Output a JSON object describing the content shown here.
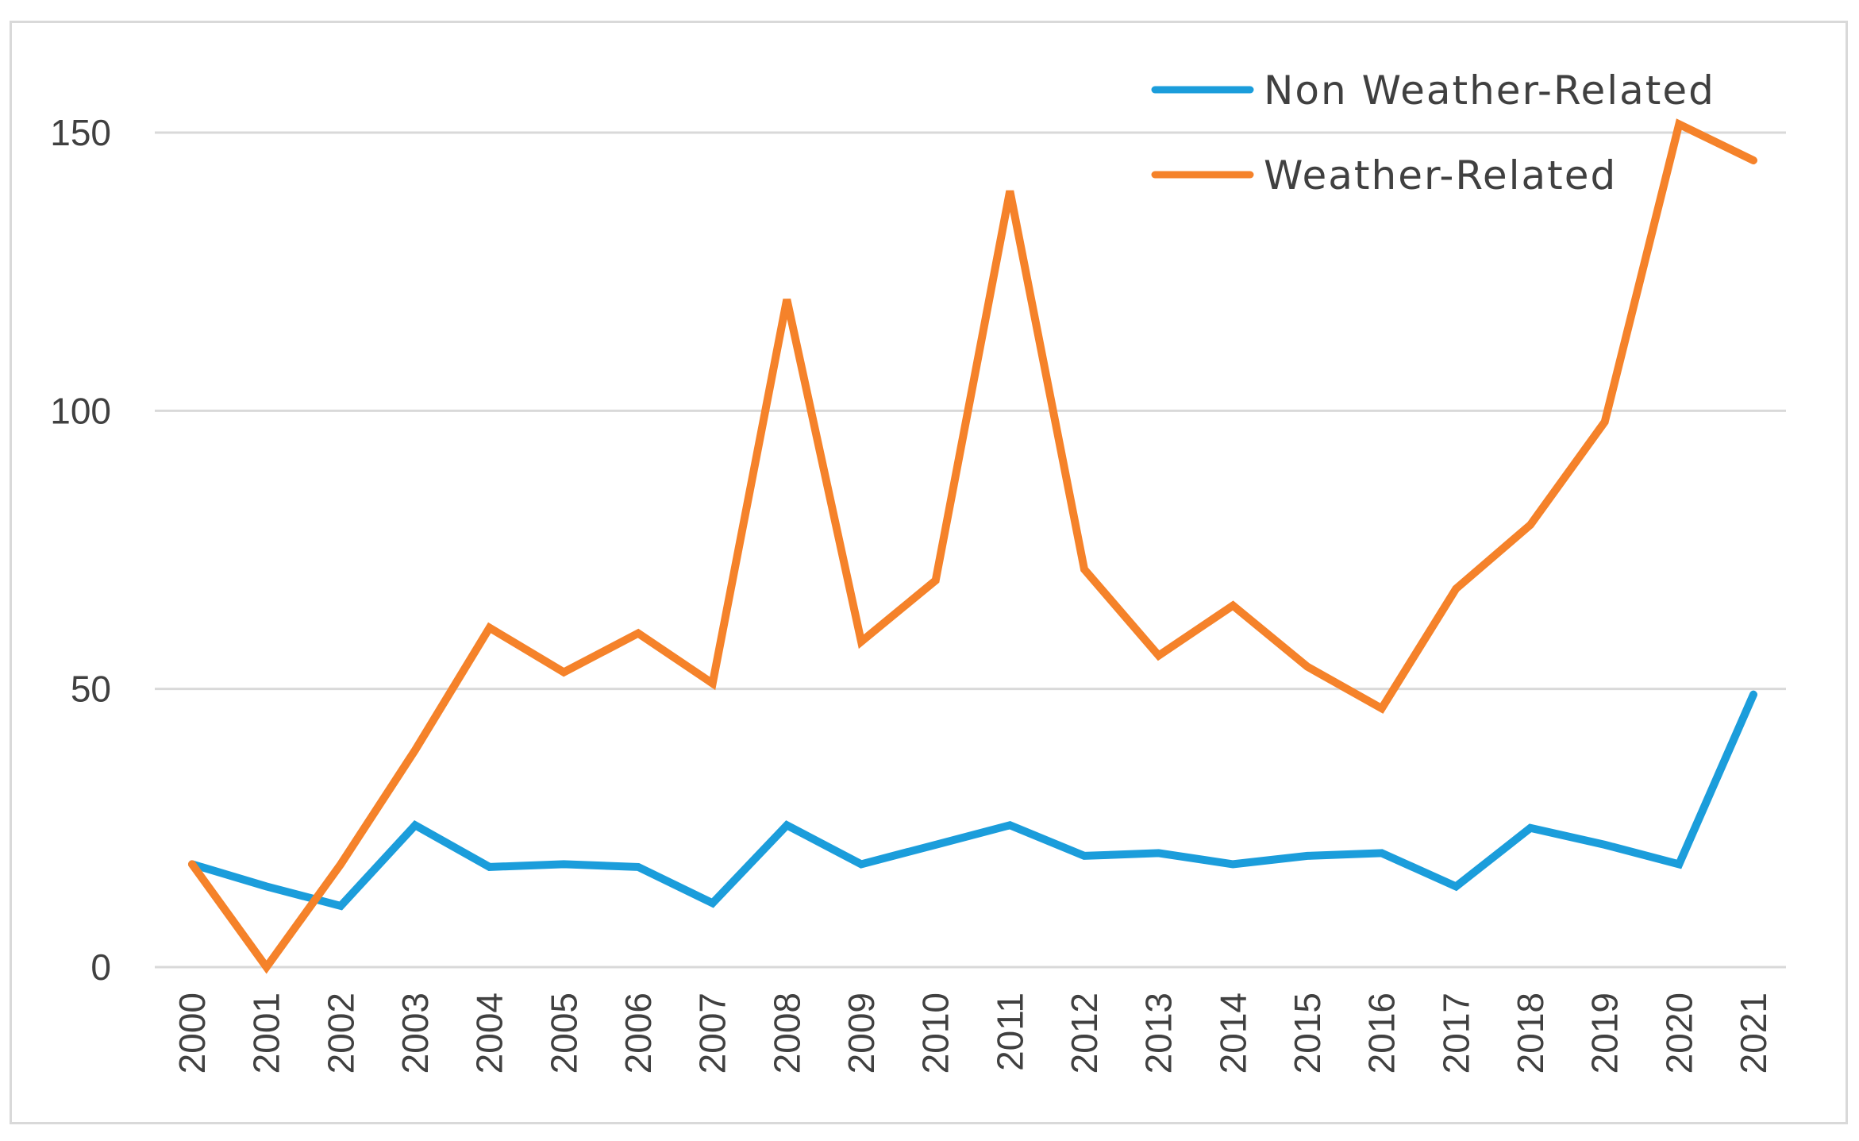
{
  "chart_data": {
    "type": "line",
    "title": "",
    "xlabel": "",
    "ylabel": "",
    "x": [
      "2000",
      "2001",
      "2002",
      "2003",
      "2004",
      "2005",
      "2006",
      "2007",
      "2008",
      "2009",
      "2010",
      "2011",
      "2012",
      "2013",
      "2014",
      "2015",
      "2016",
      "2017",
      "2018",
      "2019",
      "2020",
      "2021"
    ],
    "ylim": [
      0,
      160
    ],
    "yticks": [
      "0",
      "50",
      "100",
      "150"
    ],
    "grid": true,
    "legend_position": "top-right",
    "series": [
      {
        "name": "Non Weather-Related",
        "color": "#1b9ddb",
        "values": [
          18.5,
          14.5,
          11,
          25.5,
          18,
          18.5,
          18,
          11.5,
          25.5,
          18.5,
          22,
          25.5,
          20,
          20.5,
          18.5,
          20,
          20.5,
          14.5,
          25,
          22,
          18.5,
          49
        ]
      },
      {
        "name": "Weather-Related",
        "color": "#f5822a",
        "values": [
          18.5,
          0,
          18.5,
          39,
          61,
          53,
          60,
          51,
          120,
          58.5,
          69.5,
          139.5,
          71.5,
          56,
          65,
          54,
          46.5,
          68,
          79.5,
          98,
          151.5,
          145
        ]
      }
    ]
  }
}
